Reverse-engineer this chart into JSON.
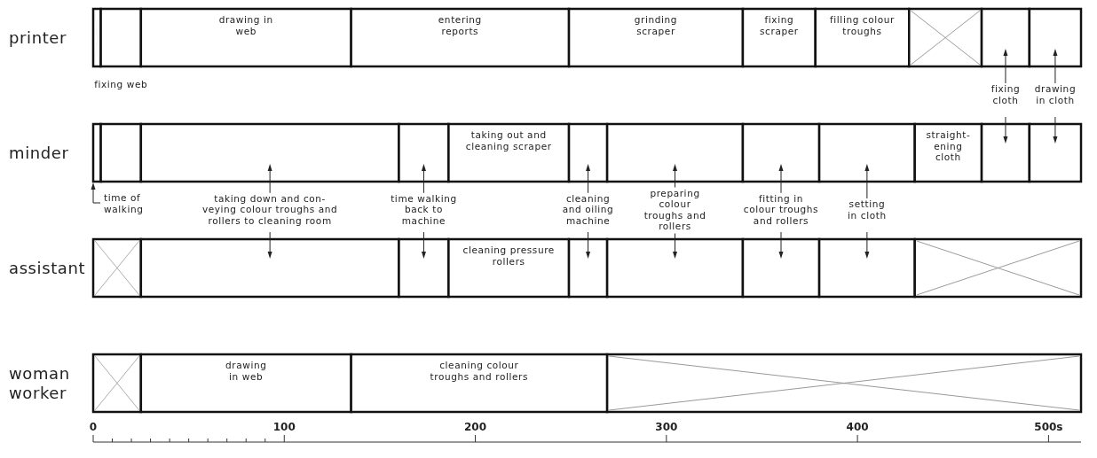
{
  "chart_data": {
    "type": "bar",
    "orientation": "horizontal",
    "categories": [
      "printer",
      "minder",
      "assistant",
      "woman\nworker"
    ],
    "xlim": [
      0,
      517
    ],
    "xticks": [
      0,
      {
        "value": 10,
        "label": null
      },
      {
        "value": 20,
        "label": null
      },
      {
        "value": 30,
        "label": null
      },
      {
        "value": 40,
        "label": null
      },
      {
        "value": 50,
        "label": null
      },
      {
        "value": 60,
        "label": null
      },
      {
        "value": 70,
        "label": null
      },
      {
        "value": 80,
        "label": null
      },
      {
        "value": 90,
        "label": null
      },
      100,
      200,
      300,
      400,
      {
        "value": 500,
        "label": "500s"
      }
    ],
    "series": [
      {
        "color": "#ffffff",
        "marker": "cross",
        "values": [
          4,
          null,
          null,
          null
        ],
        "base": [
          0,
          null,
          null,
          null
        ]
      },
      {
        "color": "#ffffff",
        "values": [
          21,
          null,
          null,
          null
        ],
        "base": [
          4,
          null,
          null,
          null
        ]
      },
      {
        "color": "#ffffff",
        "values": [
          110,
          null,
          null,
          null
        ],
        "base": [
          25,
          null,
          null,
          null
        ]
      },
      {
        "color": "#ffffff",
        "values": [
          114,
          null,
          null,
          null
        ],
        "base": [
          135,
          null,
          null,
          null
        ]
      },
      {
        "color": "#ffffff",
        "values": [
          91,
          null,
          null,
          null
        ],
        "base": [
          249,
          null,
          null,
          null
        ]
      },
      {
        "color": "#ffffff",
        "values": [
          38,
          null,
          null,
          null
        ],
        "base": [
          340,
          null,
          null,
          null
        ]
      },
      {
        "color": "#ffffff",
        "values": [
          49,
          null,
          null,
          null
        ],
        "base": [
          378,
          null,
          null,
          null
        ]
      },
      {
        "color": "#ffffff",
        "marker": "cross",
        "values": [
          38,
          null,
          null,
          null
        ],
        "base": [
          427,
          null,
          null,
          null
        ]
      },
      {
        "color": "#ffffff",
        "values": [
          25,
          null,
          null,
          null
        ],
        "base": [
          465,
          null,
          null,
          null
        ]
      },
      {
        "color": "#ffffff",
        "values": [
          27,
          null,
          null,
          null
        ],
        "base": [
          490,
          null,
          null,
          null
        ]
      },
      {
        "color": "#ffffff",
        "values": [
          null,
          4,
          null,
          null
        ],
        "base": [
          null,
          0,
          null,
          null
        ]
      },
      {
        "color": "#ffffff",
        "values": [
          null,
          21,
          null,
          null
        ],
        "base": [
          null,
          4,
          null,
          null
        ]
      },
      {
        "color": "#ffffff",
        "values": [
          null,
          135,
          null,
          null
        ],
        "base": [
          null,
          25,
          null,
          null
        ]
      },
      {
        "color": "#ffffff",
        "values": [
          null,
          26,
          null,
          null
        ],
        "base": [
          null,
          160,
          null,
          null
        ]
      },
      {
        "color": "#ffffff",
        "values": [
          null,
          63,
          null,
          null
        ],
        "base": [
          null,
          186,
          null,
          null
        ]
      },
      {
        "color": "#ffffff",
        "values": [
          null,
          20,
          null,
          null
        ],
        "base": [
          null,
          249,
          null,
          null
        ]
      },
      {
        "color": "#ffffff",
        "values": [
          null,
          71,
          null,
          null
        ],
        "base": [
          null,
          269,
          null,
          null
        ]
      },
      {
        "color": "#ffffff",
        "values": [
          null,
          40,
          null,
          null
        ],
        "base": [
          null,
          340,
          null,
          null
        ]
      },
      {
        "color": "#ffffff",
        "values": [
          null,
          50,
          null,
          null
        ],
        "base": [
          null,
          380,
          null,
          null
        ]
      },
      {
        "color": "#ffffff",
        "values": [
          null,
          35,
          null,
          null
        ],
        "base": [
          null,
          430,
          null,
          null
        ]
      },
      {
        "color": "#ffffff",
        "values": [
          null,
          25,
          null,
          null
        ],
        "base": [
          null,
          465,
          null,
          null
        ]
      },
      {
        "color": "#ffffff",
        "values": [
          null,
          27,
          null,
          null
        ],
        "base": [
          null,
          490,
          null,
          null
        ]
      },
      {
        "color": "#ffffff",
        "marker": "cross",
        "values": [
          null,
          null,
          25,
          null
        ],
        "base": [
          null,
          null,
          0,
          null
        ]
      },
      {
        "color": "#ffffff",
        "values": [
          null,
          null,
          135,
          null
        ],
        "base": [
          null,
          null,
          25,
          null
        ]
      },
      {
        "color": "#ffffff",
        "values": [
          null,
          null,
          26,
          null
        ],
        "base": [
          null,
          null,
          160,
          null
        ]
      },
      {
        "color": "#ffffff",
        "values": [
          null,
          null,
          63,
          null
        ],
        "base": [
          null,
          null,
          186,
          null
        ]
      },
      {
        "color": "#ffffff",
        "values": [
          null,
          null,
          20,
          null
        ],
        "base": [
          null,
          null,
          249,
          null
        ]
      },
      {
        "color": "#ffffff",
        "values": [
          null,
          null,
          71,
          null
        ],
        "base": [
          null,
          null,
          269,
          null
        ]
      },
      {
        "color": "#ffffff",
        "values": [
          null,
          null,
          40,
          null
        ],
        "base": [
          null,
          null,
          340,
          null
        ]
      },
      {
        "color": "#ffffff",
        "values": [
          null,
          null,
          50,
          null
        ],
        "base": [
          null,
          null,
          380,
          null
        ]
      },
      {
        "color": "#ffffff",
        "marker": "cross",
        "values": [
          null,
          null,
          87,
          null
        ],
        "base": [
          null,
          null,
          430,
          null
        ]
      },
      {
        "color": "#ffffff",
        "marker": "cross",
        "values": [
          null,
          null,
          null,
          25
        ],
        "base": [
          null,
          null,
          null,
          0
        ]
      },
      {
        "color": "#ffffff",
        "values": [
          null,
          null,
          null,
          110
        ],
        "base": [
          null,
          null,
          null,
          25
        ]
      },
      {
        "color": "#ffffff",
        "values": [
          null,
          null,
          null,
          134
        ],
        "base": [
          null,
          null,
          null,
          135
        ]
      },
      {
        "color": "#ffffff",
        "marker": "cross",
        "values": [
          null,
          null,
          null,
          248
        ],
        "base": [
          null,
          null,
          null,
          269
        ]
      }
    ],
    "annotations": [
      "drawing in\nweb",
      "entering\nreports",
      "grinding\nscraper",
      "fixing\nscraper",
      "filling colour\ntroughs",
      "fixing web",
      "fixing\ncloth",
      "drawing\nin cloth",
      "taking out and\ncleaning scraper",
      "straight-\nening\ncloth",
      "time of\nwalking",
      "taking down and con-\nveying colour troughs and\nrollers to cleaning room",
      "time walking\nback to\nmachine",
      "cleaning\nand oiling\nmachine",
      "preparing\ncolour\ntroughs and\nrollers",
      "fitting in\ncolour troughs\nand rollers",
      "setting\nin cloth",
      "cleaning pressure\nrollers",
      "drawing\nin web",
      "cleaning colour\ntroughs and rollers"
    ]
  }
}
